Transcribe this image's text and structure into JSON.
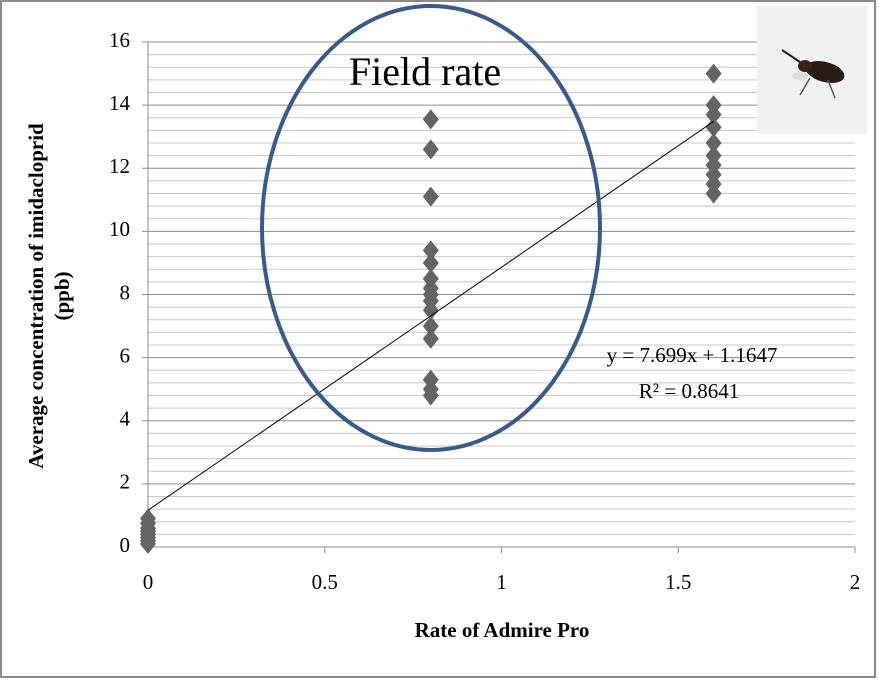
{
  "chart_data": {
    "type": "scatter",
    "x_label": "Rate of Admire  Pro",
    "y_label": [
      "Average concentration of imidacloprid",
      "(ppb)"
    ],
    "annotation": "Field rate",
    "xlim": [
      0,
      2
    ],
    "xticks": [
      0,
      0.5,
      1,
      1.5,
      2
    ],
    "ylim": [
      0,
      16
    ],
    "yticks": [
      0,
      2,
      4,
      6,
      8,
      10,
      12,
      14,
      16
    ],
    "minor_yticks": [
      0.4,
      0.8,
      1.2,
      1.6,
      2.4,
      2.8,
      3.2,
      3.6,
      4.4,
      4.8,
      5.2,
      5.6,
      6.4,
      6.8,
      7.2,
      7.6,
      8.4,
      8.8,
      9.2,
      9.6,
      10.4,
      10.8,
      11.2,
      11.6,
      12.4,
      12.8,
      13.2,
      13.6,
      14.4,
      14.8,
      15.2,
      15.6
    ],
    "grid": true,
    "series": [
      {
        "color": "#646464",
        "x": [
          0,
          0,
          0,
          0,
          0,
          0,
          0,
          0,
          0.8,
          0.8,
          0.8,
          0.8,
          0.8,
          0.8,
          0.8,
          0.8,
          0.8,
          0.8,
          0.8,
          0.8,
          0.8,
          0.8,
          0.8,
          1.6,
          1.6,
          1.6,
          1.6,
          1.6,
          1.6,
          1.6,
          1.6,
          1.6,
          1.6
        ],
        "y": [
          0.1,
          0.2,
          0.3,
          0.4,
          0.5,
          0.6,
          0.75,
          0.9,
          13.55,
          12.6,
          11.1,
          9.4,
          9.0,
          8.5,
          8.2,
          8.0,
          7.8,
          7.5,
          7.0,
          6.6,
          5.3,
          5.0,
          4.8,
          15.0,
          14.0,
          13.7,
          13.3,
          12.8,
          12.4,
          12.1,
          11.8,
          11.5,
          11.2
        ]
      }
    ],
    "trendline": {
      "slope": 7.699,
      "intercept": 1.1647,
      "color": "#000000",
      "equation": "y = 7.699x + 1.1647",
      "r2": "R² = 0.8641"
    }
  }
}
